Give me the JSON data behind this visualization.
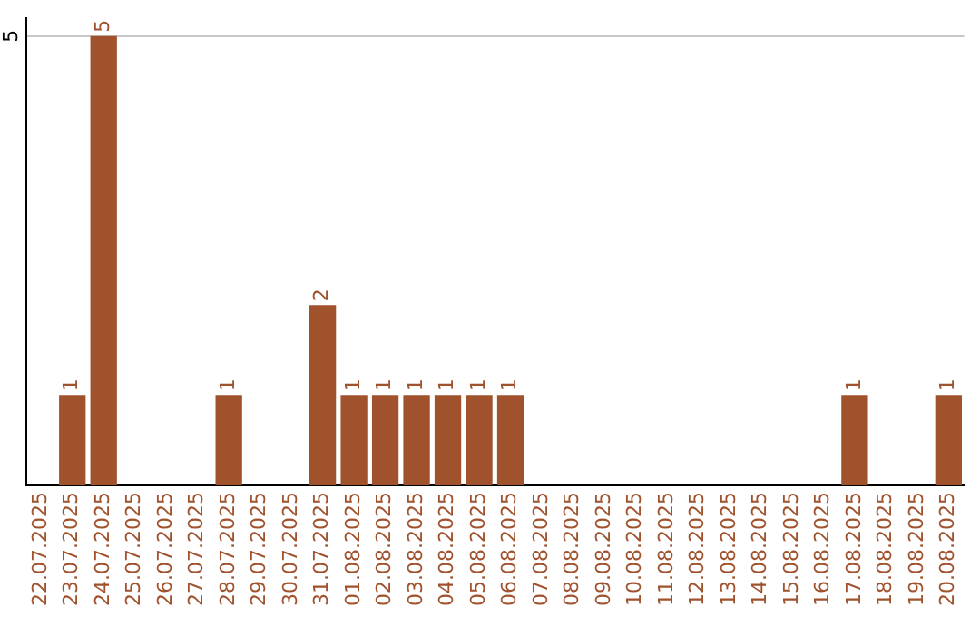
{
  "chart_data": {
    "type": "bar",
    "categories": [
      "22.07.2025",
      "23.07.2025",
      "24.07.2025",
      "25.07.2025",
      "26.07.2025",
      "27.07.2025",
      "28.07.2025",
      "29.07.2025",
      "30.07.2025",
      "31.07.2025",
      "01.08.2025",
      "02.08.2025",
      "03.08.2025",
      "04.08.2025",
      "05.08.2025",
      "06.08.2025",
      "07.08.2025",
      "08.08.2025",
      "09.08.2025",
      "10.08.2025",
      "11.08.2025",
      "12.08.2025",
      "13.08.2025",
      "14.08.2025",
      "15.08.2025",
      "16.08.2025",
      "17.08.2025",
      "18.08.2025",
      "19.08.2025",
      "20.08.2025"
    ],
    "values": [
      null,
      1,
      5,
      null,
      null,
      null,
      1,
      null,
      null,
      2,
      1,
      1,
      1,
      1,
      1,
      1,
      null,
      null,
      null,
      null,
      null,
      null,
      null,
      null,
      null,
      null,
      1,
      null,
      null,
      1
    ],
    "color": "#a0522d",
    "ylim": [
      0,
      5.2
    ],
    "yticks": [
      5
    ],
    "grid": "y",
    "data_labels": true,
    "legend": false
  }
}
